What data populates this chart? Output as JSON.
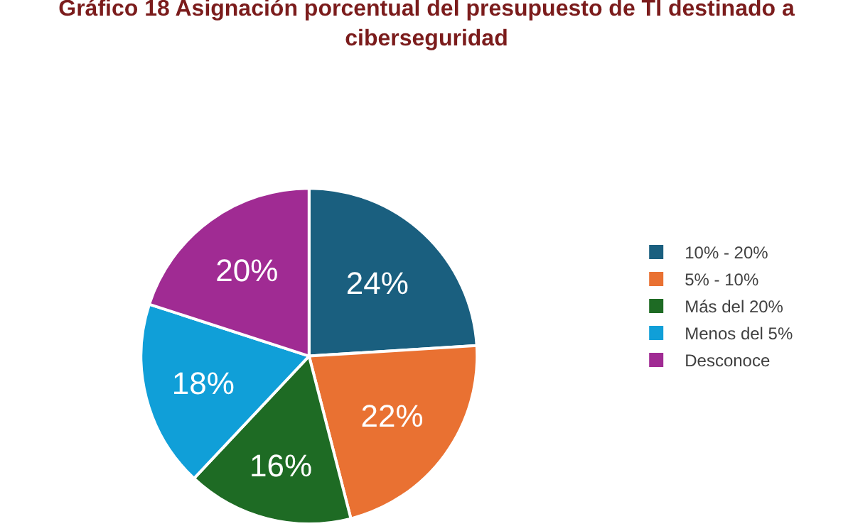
{
  "chart_data": {
    "type": "pie",
    "title": "Gráfico 18 Asignación porcentual del presupuesto de TI destinado a ciberseguridad",
    "categories": [
      "10% - 20%",
      "5% - 10%",
      "Más del 20%",
      "Menos del 5%",
      "Desconoce"
    ],
    "values": [
      24,
      22,
      16,
      18,
      20
    ],
    "colors": [
      "#1a5f7f",
      "#e97132",
      "#1e6b24",
      "#109fd8",
      "#a02b93"
    ],
    "value_labels": [
      "24%",
      "22%",
      "16%",
      "18%",
      "20%"
    ],
    "legend": "right"
  }
}
